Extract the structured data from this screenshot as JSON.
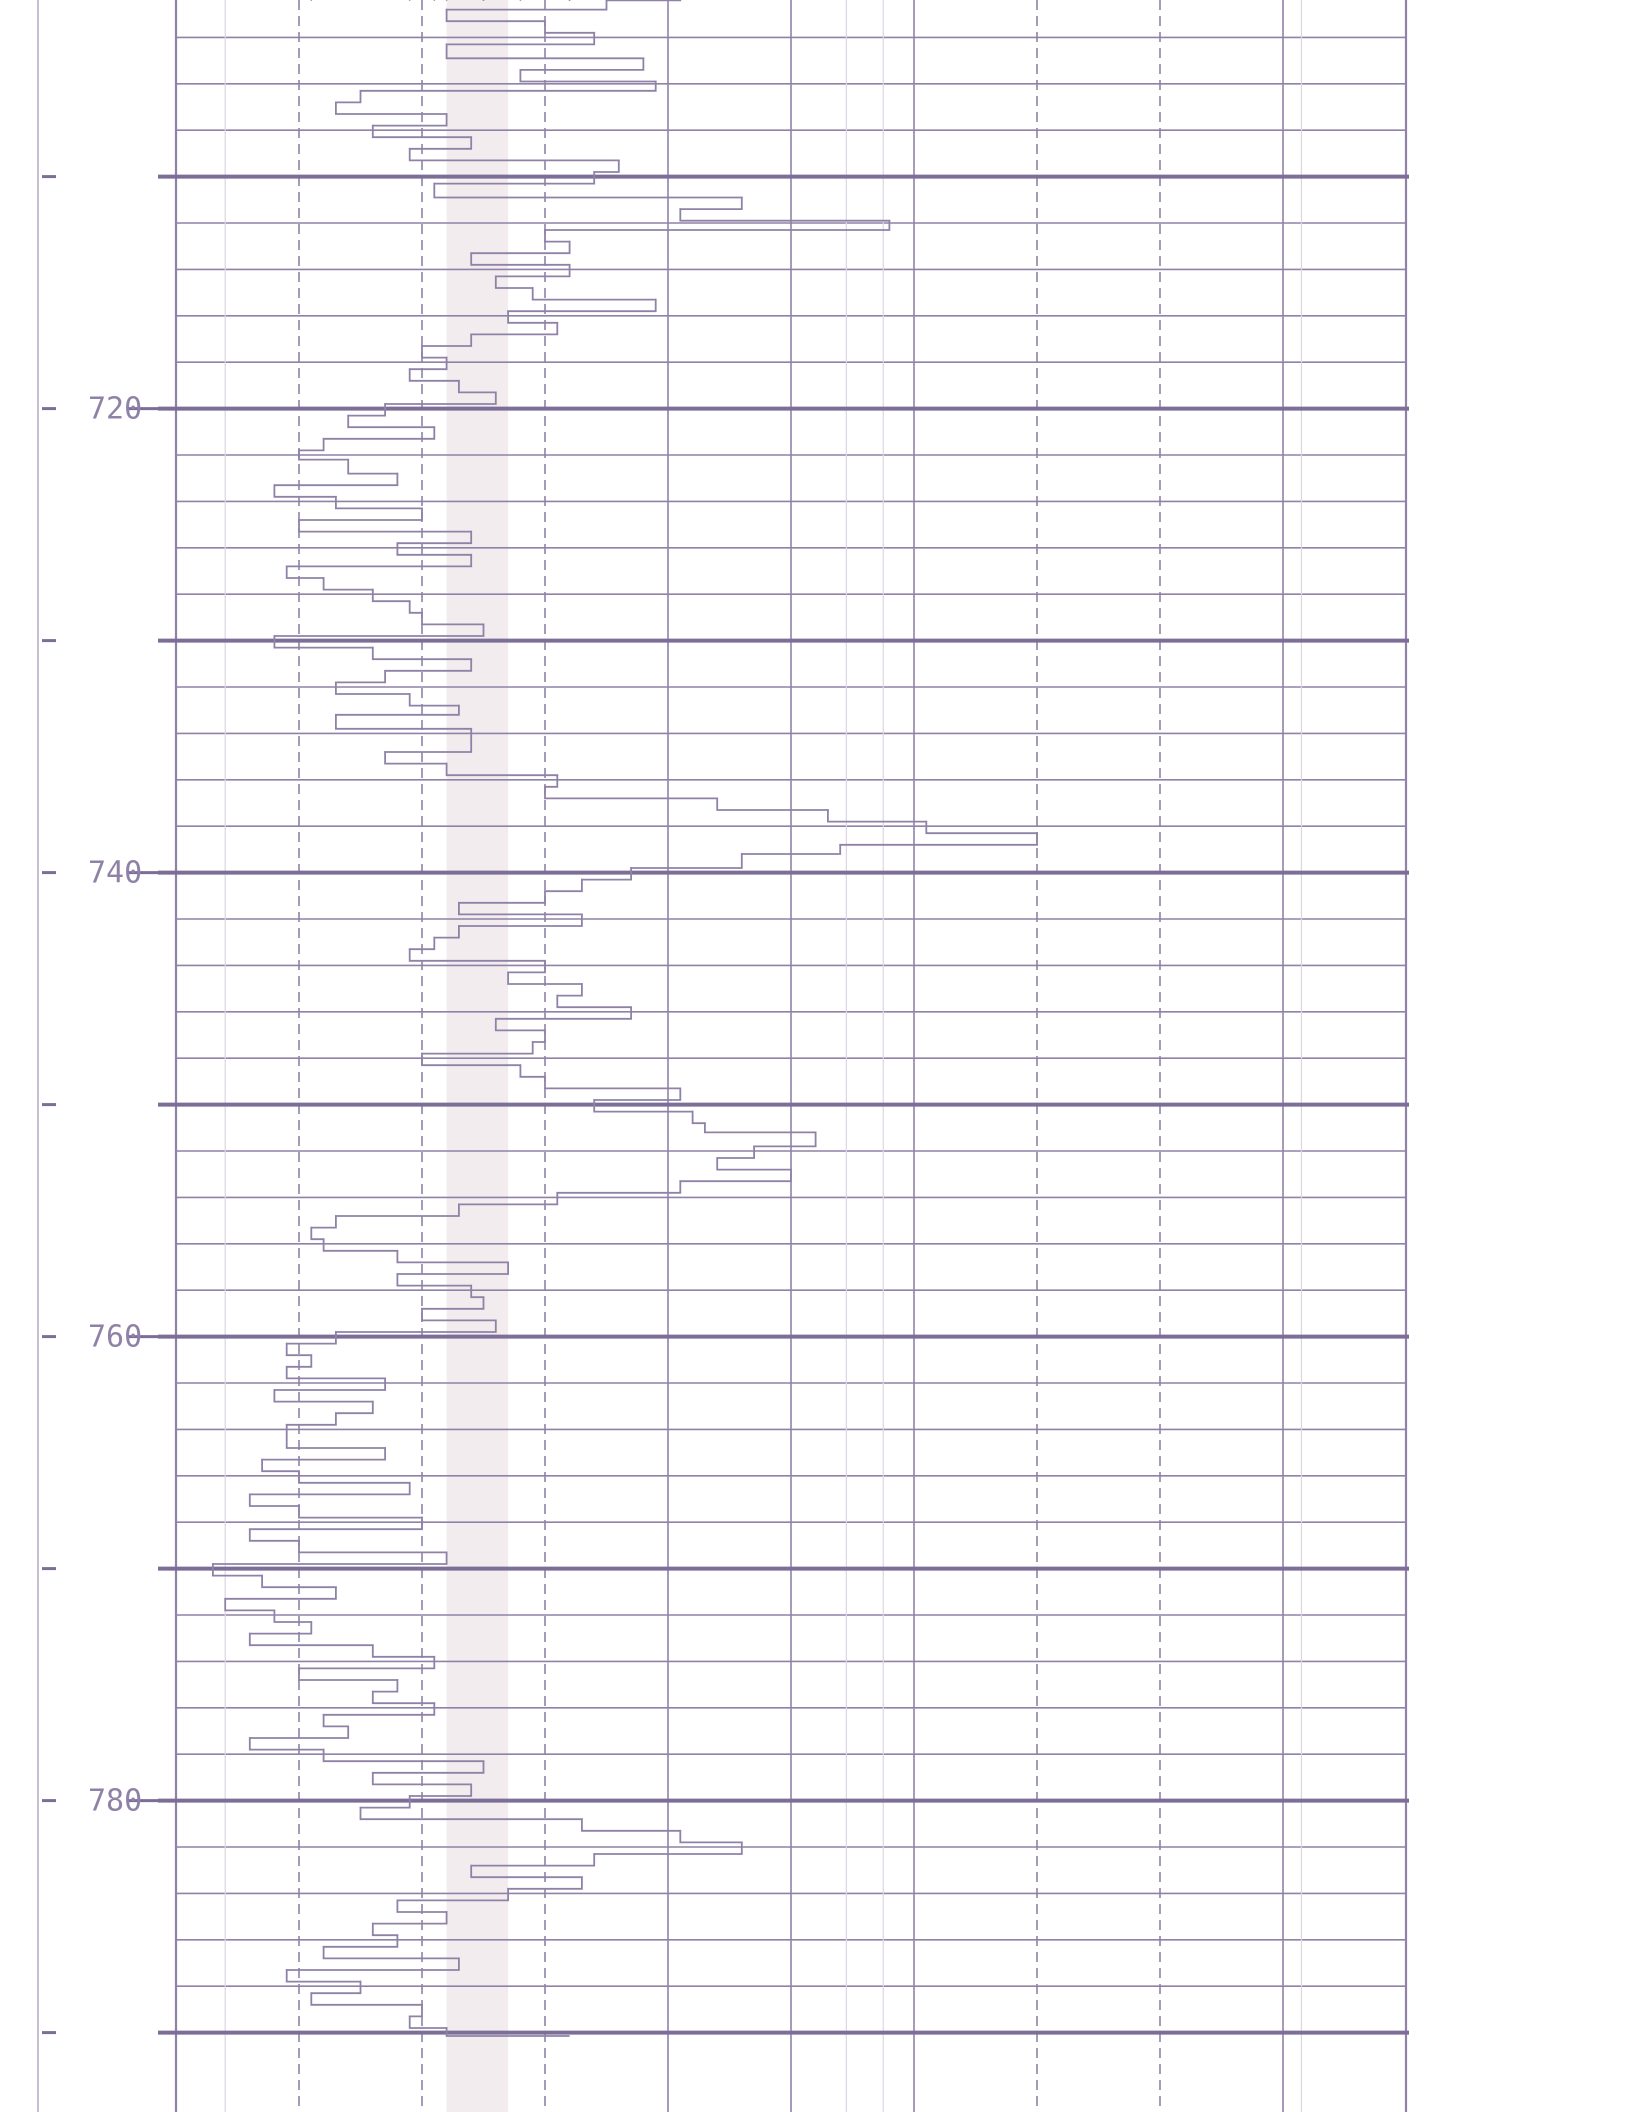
{
  "colors": {
    "ink": "#8f82a6",
    "ink_dark": "#7c6e96",
    "paper": "#ffffff",
    "band": "#f3ecee"
  },
  "chart_data": {
    "type": "line",
    "orientation": "vertical-depth",
    "title": "",
    "xlabel": "",
    "ylabel": "",
    "y_axis": {
      "direction": "down",
      "range": [
        702,
        790
      ],
      "major_tick_step": 10,
      "minor_line_step": 2
    },
    "y_tick_labels": [
      "720",
      "740",
      "760",
      "780"
    ],
    "x_axis": {
      "range": [
        0,
        10
      ],
      "major_divisions": 10,
      "dashed_divisions": [
        1,
        2,
        3,
        7,
        8
      ],
      "tick_labels": []
    },
    "grid": true,
    "series": [
      {
        "depth": [
          702.0,
          702.4,
          702.8,
          703.3,
          703.8,
          704.3,
          704.9,
          705.4,
          705.9,
          706.3,
          706.8,
          707.3,
          707.8,
          708.3,
          708.8,
          709.3,
          709.8,
          710.3,
          710.9,
          711.4,
          711.9,
          712.3,
          712.8,
          713.3,
          713.8,
          714.3,
          714.8,
          715.3,
          715.8,
          716.3,
          716.8,
          717.3,
          717.8,
          718.3,
          718.8,
          719.3,
          719.8,
          720.3,
          720.8,
          721.3,
          721.8,
          722.2,
          722.8,
          723.3,
          723.8,
          724.3,
          724.8,
          725.3,
          725.8,
          726.3,
          726.8,
          727.3,
          727.8,
          728.3,
          728.8,
          729.3,
          729.8,
          730.3,
          730.8,
          731.3,
          731.8,
          732.3,
          732.8,
          733.2,
          733.8,
          734.3,
          734.8,
          735.3,
          735.8,
          736.3,
          736.8,
          737.3,
          737.8,
          738.3,
          738.8,
          739.2,
          739.8,
          740.3,
          740.8,
          741.3,
          741.8,
          742.3,
          742.8,
          743.3,
          743.8,
          744.3,
          744.8,
          745.3,
          745.8,
          746.3,
          746.8,
          747.3,
          747.8,
          748.3,
          748.8,
          749.3,
          749.8,
          750.3,
          750.8,
          751.2,
          751.8,
          752.3,
          752.8,
          753.3,
          753.8,
          754.3,
          754.8,
          755.3,
          755.8,
          756.3,
          756.8,
          757.3,
          757.8,
          758.3,
          758.8,
          759.3,
          759.8,
          760.3,
          760.8,
          761.3,
          761.8,
          762.3,
          762.8,
          763.3,
          763.8,
          764.3,
          764.8,
          765.3,
          765.8,
          766.3,
          766.8,
          767.3,
          767.8,
          768.3,
          768.8,
          769.3,
          769.8,
          770.3,
          770.8,
          771.3,
          771.8,
          772.3,
          772.8,
          773.3,
          773.8,
          774.3,
          774.8,
          775.3,
          775.8,
          776.3,
          776.8,
          777.3,
          777.8,
          778.3,
          778.8,
          779.3,
          779.8,
          780.3,
          780.8,
          781.3,
          781.8,
          782.3,
          782.8,
          783.3,
          783.8,
          784.3,
          784.8,
          785.3,
          785.8,
          786.3,
          786.8,
          787.3,
          787.8,
          788.3,
          788.8,
          789.3,
          789.8
        ],
        "values": [
          4.1,
          3.5,
          2.2,
          3.0,
          3.4,
          2.2,
          3.8,
          2.8,
          3.9,
          1.5,
          1.3,
          2.2,
          1.6,
          2.4,
          1.9,
          3.6,
          3.4,
          2.1,
          4.6,
          4.1,
          5.8,
          3.0,
          3.2,
          2.4,
          3.2,
          2.6,
          2.9,
          3.9,
          2.7,
          3.1,
          2.4,
          2.0,
          2.2,
          1.9,
          2.3,
          2.6,
          1.7,
          1.4,
          2.1,
          1.2,
          1.0,
          1.4,
          1.8,
          0.8,
          1.3,
          2.0,
          1.0,
          2.4,
          1.8,
          2.4,
          0.9,
          1.2,
          1.6,
          1.9,
          2.0,
          2.5,
          0.8,
          1.6,
          2.4,
          1.7,
          1.3,
          1.9,
          2.3,
          1.3,
          2.4,
          2.4,
          1.7,
          2.2,
          3.1,
          3.0,
          4.4,
          5.3,
          6.1,
          7.0,
          5.4,
          4.6,
          3.7,
          3.3,
          3.0,
          2.3,
          3.3,
          2.3,
          2.1,
          1.9,
          3.0,
          2.7,
          3.3,
          3.1,
          3.7,
          2.6,
          3.0,
          2.9,
          2.0,
          2.8,
          3.0,
          4.1,
          3.4,
          4.2,
          4.3,
          5.2,
          4.7,
          4.4,
          5.0,
          4.1,
          3.1,
          2.3,
          1.3,
          1.1,
          1.2,
          1.8,
          2.7,
          1.8,
          2.4,
          2.5,
          2.0,
          2.6,
          1.3,
          0.9,
          1.1,
          0.9,
          1.7,
          0.8,
          1.6,
          1.3,
          0.9,
          0.9,
          1.7,
          0.7,
          1.0,
          1.9,
          0.6,
          1.0,
          2.0,
          0.6,
          1.0,
          2.2,
          0.3,
          0.7,
          1.3,
          0.4,
          0.8,
          1.1,
          0.6,
          1.6,
          2.1,
          1.0,
          1.8,
          1.6,
          2.1,
          1.2,
          1.4,
          0.6,
          1.2,
          2.5,
          1.6,
          2.4,
          1.9,
          1.5,
          3.3,
          4.1,
          4.6,
          3.4,
          2.4,
          3.3,
          2.7,
          1.8,
          2.2,
          1.6,
          1.8,
          1.2,
          2.3,
          0.9,
          1.5,
          1.1,
          2.0,
          1.9,
          2.2,
          3.2,
          1.9,
          3.6,
          3.5,
          2.5,
          3.2,
          2.1,
          1.1,
          2.2,
          2.8,
          2.5
        ]
      }
    ]
  }
}
